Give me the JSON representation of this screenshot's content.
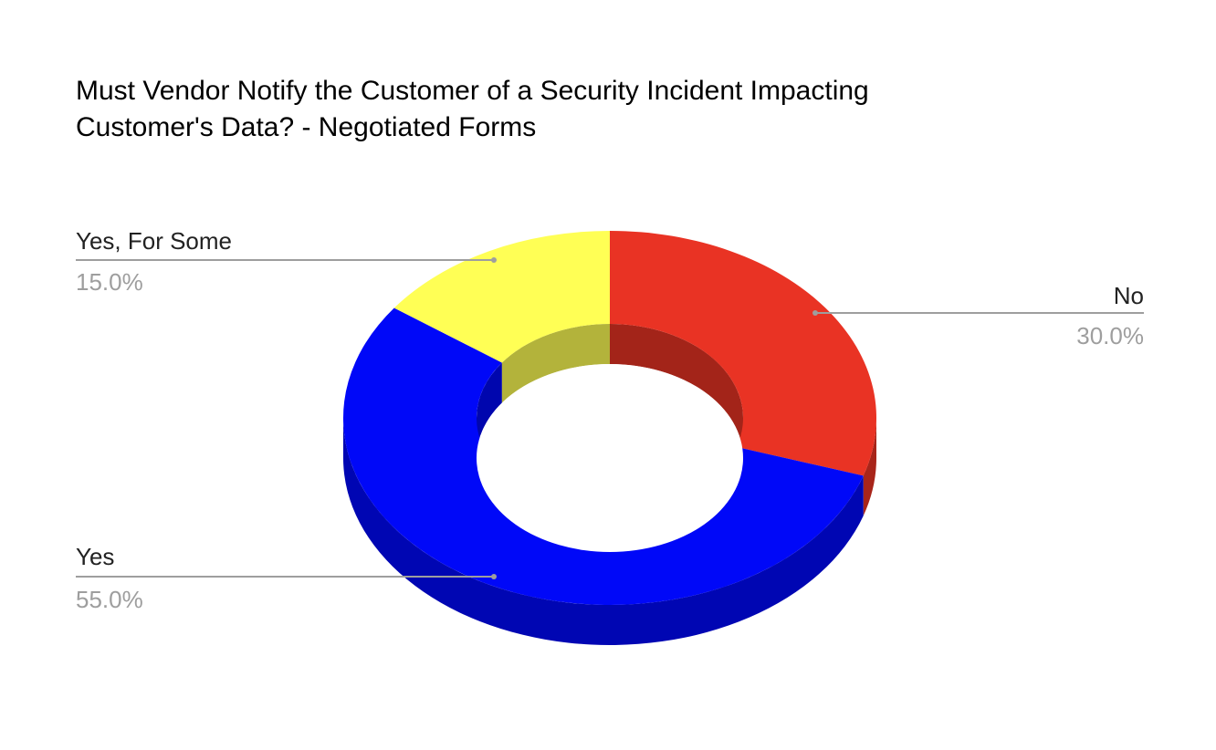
{
  "chart_data": {
    "type": "pie",
    "subtype": "3d-donut",
    "title_lines": [
      "Must Vendor Notify the Customer of a Security Incident Impacting",
      "Customer's Data? - Negotiated Forms"
    ],
    "slices": [
      {
        "label": "No",
        "value": 30.0,
        "display": "30.0%",
        "color": "#e93324"
      },
      {
        "label": "Yes",
        "value": 55.0,
        "display": "55.0%",
        "color": "#0008f8"
      },
      {
        "label": "Yes, For Some",
        "value": 15.0,
        "display": "15.0%",
        "color": "#ffff55"
      }
    ],
    "legend": "none",
    "label_style": "callout-lines"
  }
}
